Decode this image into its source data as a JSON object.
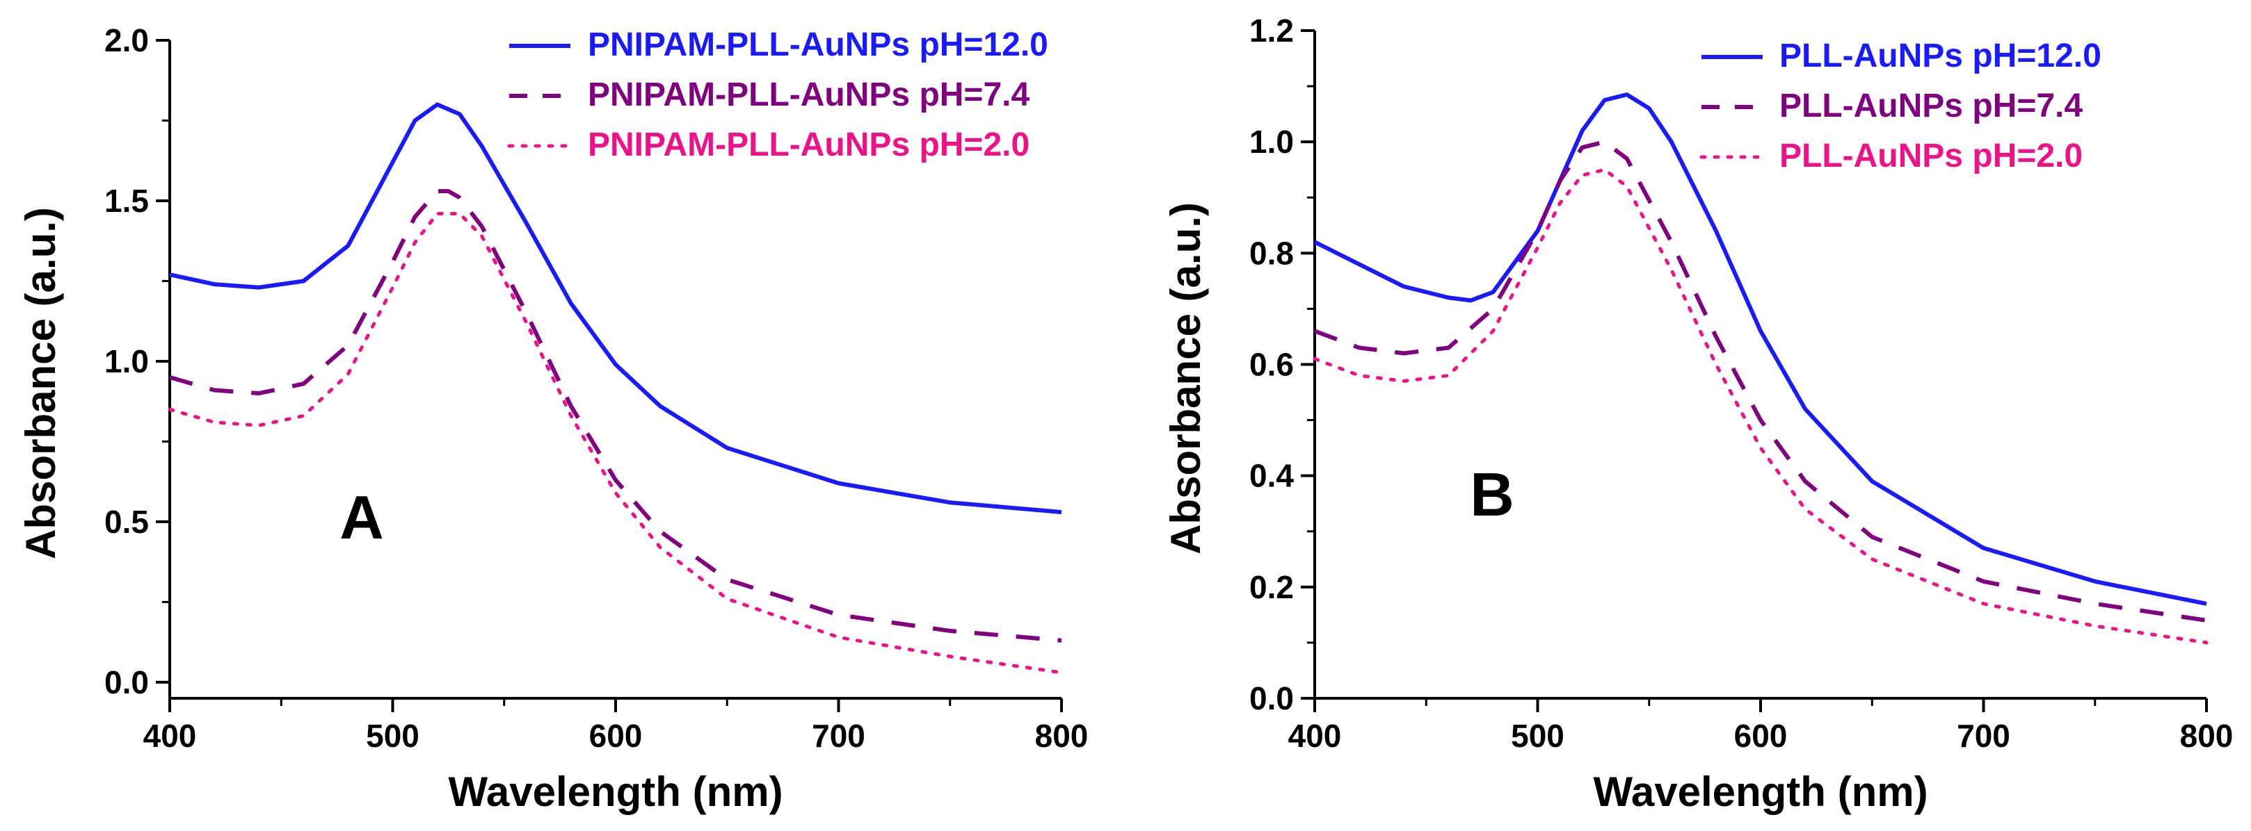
{
  "chart_data": [
    {
      "panel_label": "A",
      "type": "line",
      "xlabel": "Wavelength (nm)",
      "ylabel": "Absorbance (a.u.)",
      "xlim": [
        400,
        800
      ],
      "ylim": [
        -0.05,
        2.0
      ],
      "xticks": [
        400,
        500,
        600,
        700,
        800
      ],
      "yticks": [
        0.0,
        0.5,
        1.0,
        1.5,
        2.0
      ],
      "ytick_labels": [
        "0.0",
        "0.5",
        "1.0",
        "1.5",
        "2.0"
      ],
      "legend_position": "top-right",
      "grid": false,
      "series": [
        {
          "name": "PNIPAM-PLL-AuNPs pH=12.0",
          "style": "solid",
          "color": "#1a1aff",
          "x": [
            400,
            420,
            440,
            460,
            480,
            500,
            510,
            520,
            530,
            540,
            560,
            580,
            600,
            620,
            650,
            700,
            750,
            800
          ],
          "y": [
            1.27,
            1.24,
            1.23,
            1.25,
            1.36,
            1.62,
            1.75,
            1.8,
            1.77,
            1.67,
            1.43,
            1.18,
            0.99,
            0.86,
            0.73,
            0.62,
            0.56,
            0.53
          ]
        },
        {
          "name": "PNIPAM-PLL-AuNPs pH=7.4",
          "style": "dashed",
          "color": "#800080",
          "x": [
            400,
            420,
            440,
            460,
            480,
            500,
            510,
            520,
            525,
            530,
            540,
            560,
            580,
            600,
            620,
            650,
            700,
            750,
            800
          ],
          "y": [
            0.95,
            0.91,
            0.9,
            0.93,
            1.05,
            1.31,
            1.45,
            1.53,
            1.53,
            1.51,
            1.42,
            1.15,
            0.86,
            0.63,
            0.47,
            0.32,
            0.21,
            0.16,
            0.13
          ]
        },
        {
          "name": "PNIPAM-PLL-AuNPs pH=2.0",
          "style": "dotted",
          "color": "#ee1188",
          "x": [
            400,
            420,
            440,
            460,
            480,
            500,
            510,
            520,
            530,
            540,
            560,
            580,
            600,
            620,
            650,
            700,
            750,
            800
          ],
          "y": [
            0.85,
            0.81,
            0.8,
            0.83,
            0.96,
            1.23,
            1.37,
            1.46,
            1.46,
            1.39,
            1.12,
            0.83,
            0.59,
            0.42,
            0.26,
            0.14,
            0.08,
            0.03
          ]
        }
      ]
    },
    {
      "panel_label": "B",
      "type": "line",
      "xlabel": "Wavelength (nm)",
      "ylabel": "Absorbance (a.u.)",
      "xlim": [
        400,
        800
      ],
      "ylim": [
        0.0,
        1.2
      ],
      "xticks": [
        400,
        500,
        600,
        700,
        800
      ],
      "yticks": [
        0.0,
        0.2,
        0.4,
        0.6,
        0.8,
        1.0,
        1.2
      ],
      "ytick_labels": [
        "0.0",
        "0.2",
        "0.4",
        "0.6",
        "0.8",
        "1.0",
        "1.2"
      ],
      "legend_position": "top-right",
      "grid": false,
      "series": [
        {
          "name": "PLL-AuNPs pH=12.0",
          "style": "solid",
          "color": "#1a1aff",
          "x": [
            400,
            420,
            440,
            460,
            470,
            480,
            500,
            510,
            520,
            530,
            540,
            550,
            560,
            580,
            600,
            620,
            650,
            700,
            750,
            800
          ],
          "y": [
            0.82,
            0.78,
            0.74,
            0.72,
            0.715,
            0.73,
            0.84,
            0.93,
            1.02,
            1.075,
            1.085,
            1.06,
            1.0,
            0.84,
            0.66,
            0.52,
            0.39,
            0.27,
            0.21,
            0.17
          ]
        },
        {
          "name": "PLL-AuNPs pH=7.4",
          "style": "dashed",
          "color": "#800080",
          "x": [
            400,
            420,
            440,
            460,
            480,
            500,
            510,
            520,
            530,
            540,
            560,
            580,
            600,
            620,
            650,
            700,
            750,
            800
          ],
          "y": [
            0.66,
            0.63,
            0.62,
            0.63,
            0.7,
            0.84,
            0.93,
            0.99,
            1.0,
            0.97,
            0.82,
            0.65,
            0.5,
            0.39,
            0.29,
            0.21,
            0.17,
            0.14
          ]
        },
        {
          "name": "PLL-AuNPs pH=2.0",
          "style": "dotted",
          "color": "#ee1188",
          "x": [
            400,
            420,
            440,
            460,
            480,
            500,
            510,
            520,
            530,
            540,
            560,
            580,
            600,
            620,
            650,
            700,
            750,
            800
          ],
          "y": [
            0.61,
            0.58,
            0.57,
            0.58,
            0.66,
            0.81,
            0.89,
            0.94,
            0.95,
            0.92,
            0.77,
            0.6,
            0.45,
            0.34,
            0.25,
            0.17,
            0.13,
            0.1
          ]
        }
      ]
    }
  ]
}
